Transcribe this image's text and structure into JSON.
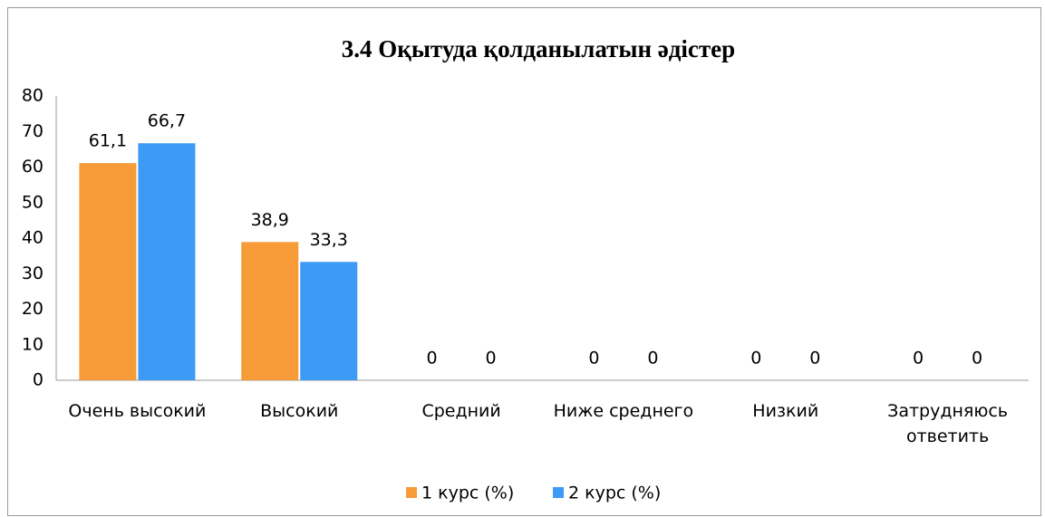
{
  "chart_data": {
    "type": "bar",
    "title": "3.4 Оқытуда қолданылатын әдістер",
    "categories": [
      "Очень высокий",
      "Высокий",
      "Средний",
      "Ниже среднего",
      "Низкий",
      "Затрудняюсь ответить"
    ],
    "series": [
      {
        "name": "1 курс (%)",
        "color": "#f79a38",
        "values": [
          61.1,
          38.9,
          0,
          0,
          0,
          0
        ],
        "value_labels": [
          "61,1",
          "38,9",
          "0",
          "0",
          "0",
          "0"
        ]
      },
      {
        "name": "2 курс (%)",
        "color": "#3d9bf5",
        "values": [
          66.7,
          33.3,
          0,
          0,
          0,
          0
        ],
        "value_labels": [
          "66,7",
          "33,3",
          "0",
          "0",
          "0",
          "0"
        ]
      }
    ],
    "ylim": [
      0,
      80
    ],
    "yticks": [
      0,
      10,
      20,
      30,
      40,
      50,
      60,
      70,
      80
    ],
    "grid": false,
    "legend": "bottom"
  }
}
